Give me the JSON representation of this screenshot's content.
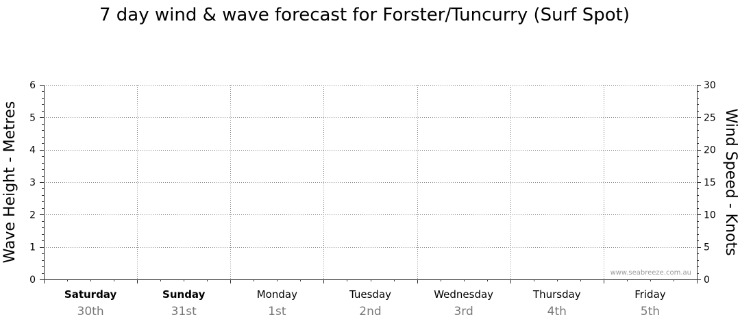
{
  "chart_data": {
    "type": "line",
    "title": "7 day wind & wave forecast for Forster/Tuncurry (Surf Spot)",
    "watermark": "www.seabreeze.com.au",
    "left_axis": {
      "label": "Wave Height - Metres",
      "ylim": [
        0,
        6
      ],
      "ticks": [
        "0",
        "1",
        "2",
        "3",
        "4",
        "5",
        "6"
      ]
    },
    "right_axis": {
      "label": "Wind Speed - Knots",
      "ylim": [
        0,
        30
      ],
      "ticks": [
        "0",
        "5",
        "10",
        "15",
        "20",
        "25",
        "30"
      ]
    },
    "days": [
      {
        "name": "Saturday",
        "date": "30th",
        "bold": true
      },
      {
        "name": "Sunday",
        "date": "31st",
        "bold": true
      },
      {
        "name": "Monday",
        "date": "1st",
        "bold": false
      },
      {
        "name": "Tuesday",
        "date": "2nd",
        "bold": false
      },
      {
        "name": "Wednesday",
        "date": "3rd",
        "bold": false
      },
      {
        "name": "Thursday",
        "date": "4th",
        "bold": false
      },
      {
        "name": "Friday",
        "date": "5th",
        "bold": false
      }
    ],
    "grid": true,
    "series": [],
    "colors": {
      "text": "#000000",
      "date_text": "#777777",
      "grid": "#888888",
      "axis": "#333333",
      "watermark": "#999999"
    }
  }
}
